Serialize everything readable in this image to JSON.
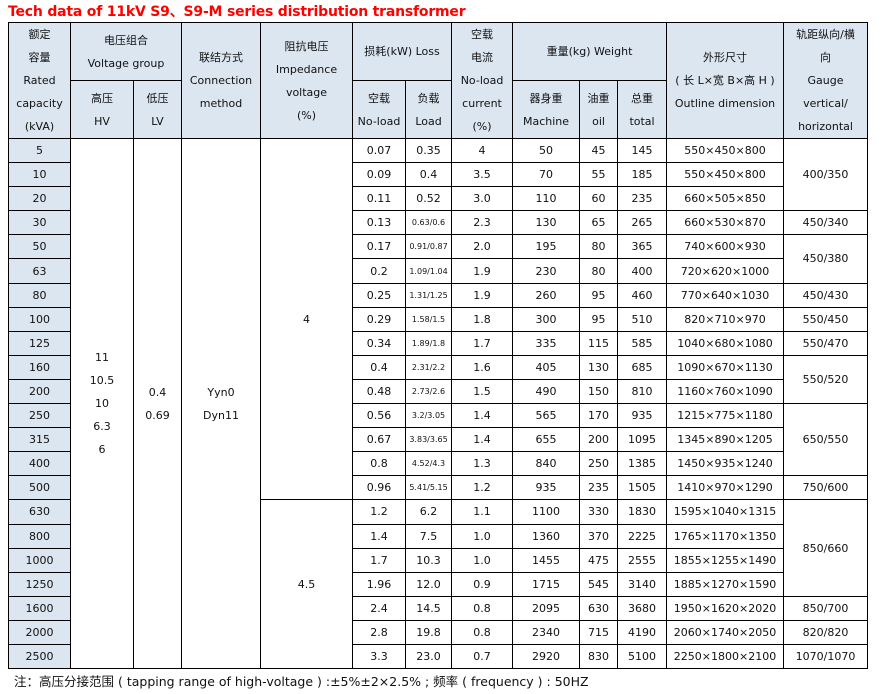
{
  "title": "Tech data of 11kV S9、S9-M series distribution transformer",
  "header": {
    "capacity": [
      "额定",
      "容量",
      "Rated",
      "capacity",
      "(kVA)"
    ],
    "voltage_group": [
      "电压组合",
      "Voltage group"
    ],
    "hv": [
      "高压",
      "HV"
    ],
    "lv": [
      "低压",
      "LV"
    ],
    "connection": [
      "联结方式",
      "Connection",
      "method"
    ],
    "impedance": [
      "阻抗电压",
      "Impedance",
      "voltage",
      "(%)"
    ],
    "loss": [
      "损耗(kW) Loss"
    ],
    "no_load_loss": [
      "空载",
      "No-load"
    ],
    "load_loss": [
      "负载",
      "Load"
    ],
    "no_load_current": [
      "空载",
      "电流",
      "No-load",
      "current",
      "(%)"
    ],
    "weight": [
      "重量(kg) Weight"
    ],
    "machine": [
      "器身重",
      "Machine"
    ],
    "oil": [
      "油重",
      "oil"
    ],
    "total": [
      "总重",
      "total"
    ],
    "outline": [
      "外形尺寸",
      "( 长 L×宽 B×高 H )",
      "Outline dimension"
    ],
    "gauge": [
      "轨距纵向/横",
      "向",
      "Gauge",
      "vertical/",
      "horizontal"
    ]
  },
  "merged": {
    "hv": [
      "11",
      "10.5",
      "10",
      "6.3",
      "6"
    ],
    "lv": [
      "0.4",
      "0.69"
    ],
    "connection": [
      "Yyn0",
      "Dyn11"
    ],
    "impedance_groups": [
      {
        "value": "4",
        "span": 15
      },
      {
        "value": "4.5",
        "span": 7
      }
    ],
    "gauge_groups": [
      {
        "value": "400/350",
        "span": 3
      },
      {
        "value": "450/340",
        "span": 1
      },
      {
        "value": "450/380",
        "span": 2
      },
      {
        "value": "450/430",
        "span": 1
      },
      {
        "value": "550/450",
        "span": 1
      },
      {
        "value": "550/470",
        "span": 1
      },
      {
        "value": "550/520",
        "span": 2
      },
      {
        "value": "650/550",
        "span": 3
      },
      {
        "value": "750/600",
        "span": 1
      },
      {
        "value": "850/660",
        "span": 4
      },
      {
        "value": "850/700",
        "span": 1
      },
      {
        "value": "820/820",
        "span": 1
      },
      {
        "value": "1070/1070",
        "span": 1
      }
    ]
  },
  "rows": [
    [
      "5",
      "0.07",
      "0.35",
      "4",
      "50",
      "45",
      "145",
      "550×450×800"
    ],
    [
      "10",
      "0.09",
      "0.4",
      "3.5",
      "70",
      "55",
      "185",
      "550×450×800"
    ],
    [
      "20",
      "0.11",
      "0.52",
      "3.0",
      "110",
      "60",
      "235",
      "660×505×850"
    ],
    [
      "30",
      "0.13",
      "0.63/0.6",
      "2.3",
      "130",
      "65",
      "265",
      "660×530×870"
    ],
    [
      "50",
      "0.17",
      "0.91/0.87",
      "2.0",
      "195",
      "80",
      "365",
      "740×600×930"
    ],
    [
      "63",
      "0.2",
      "1.09/1.04",
      "1.9",
      "230",
      "80",
      "400",
      "720×620×1000"
    ],
    [
      "80",
      "0.25",
      "1.31/1.25",
      "1.9",
      "260",
      "95",
      "460",
      "770×640×1030"
    ],
    [
      "100",
      "0.29",
      "1.58/1.5",
      "1.8",
      "300",
      "95",
      "510",
      "820×710×970"
    ],
    [
      "125",
      "0.34",
      "1.89/1.8",
      "1.7",
      "335",
      "115",
      "585",
      "1040×680×1080"
    ],
    [
      "160",
      "0.4",
      "2.31/2.2",
      "1.6",
      "405",
      "130",
      "685",
      "1090×670×1130"
    ],
    [
      "200",
      "0.48",
      "2.73/2.6",
      "1.5",
      "490",
      "150",
      "810",
      "1160×760×1090"
    ],
    [
      "250",
      "0.56",
      "3.2/3.05",
      "1.4",
      "565",
      "170",
      "935",
      "1215×775×1180"
    ],
    [
      "315",
      "0.67",
      "3.83/3.65",
      "1.4",
      "655",
      "200",
      "1095",
      "1345×890×1205"
    ],
    [
      "400",
      "0.8",
      "4.52/4.3",
      "1.3",
      "840",
      "250",
      "1385",
      "1450×935×1240"
    ],
    [
      "500",
      "0.96",
      "5.41/5.15",
      "1.2",
      "935",
      "235",
      "1505",
      "1410×970×1290"
    ],
    [
      "630",
      "1.2",
      "6.2",
      "1.1",
      "1100",
      "330",
      "1830",
      "1595×1040×1315"
    ],
    [
      "800",
      "1.4",
      "7.5",
      "1.0",
      "1360",
      "370",
      "2225",
      "1765×1170×1350"
    ],
    [
      "1000",
      "1.7",
      "10.3",
      "1.0",
      "1455",
      "475",
      "2555",
      "1855×1255×1490"
    ],
    [
      "1250",
      "1.96",
      "12.0",
      "0.9",
      "1715",
      "545",
      "3140",
      "1885×1270×1590"
    ],
    [
      "1600",
      "2.4",
      "14.5",
      "0.8",
      "2095",
      "630",
      "3680",
      "1950×1620×2020"
    ],
    [
      "2000",
      "2.8",
      "19.8",
      "0.8",
      "2340",
      "715",
      "4190",
      "2060×1740×2050"
    ],
    [
      "2500",
      "3.3",
      "23.0",
      "0.7",
      "2920",
      "830",
      "5100",
      "2250×1800×2100"
    ]
  ],
  "note": "注：高压分接范围 ( tapping range of high-voltage ) :±5%±2×2.5% ; 频率 ( frequency ) : 50HZ",
  "colors": {
    "title": "#ff0000",
    "header_bg": "#dce6f1"
  }
}
